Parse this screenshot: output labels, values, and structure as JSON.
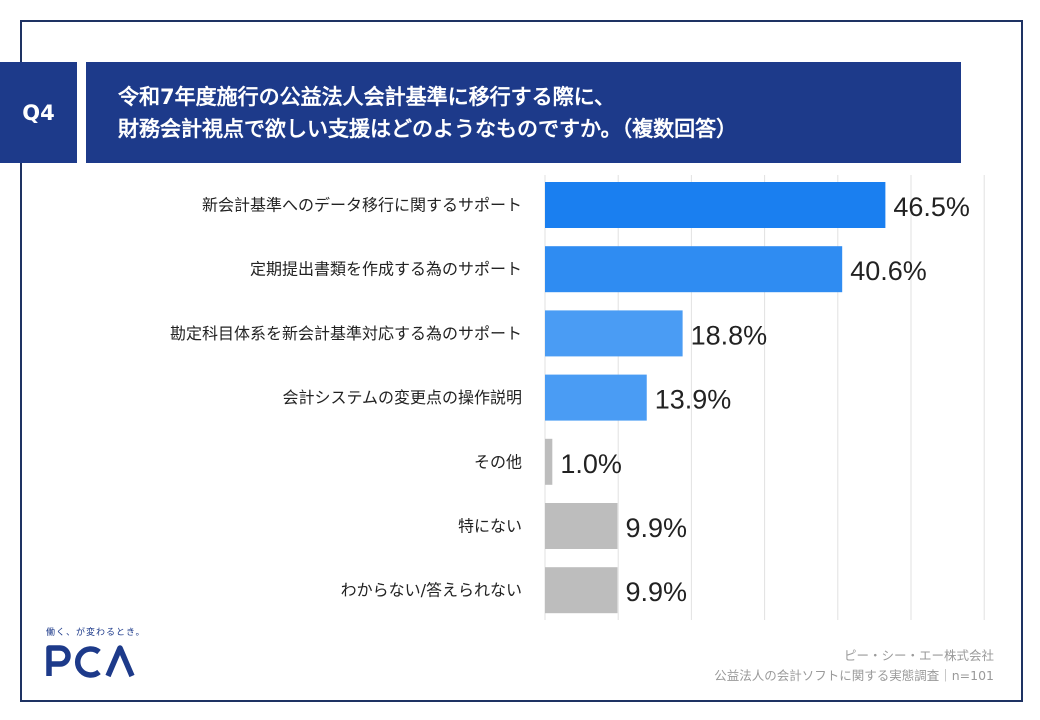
{
  "question": {
    "label": "Q4",
    "title_line1": "令和7年度施行の公益法人会計基準に移行する際に、",
    "title_line2": "財務会計視点で欲しい支援はどのようなものですか。（複数回答）"
  },
  "chart_data": {
    "type": "bar",
    "orientation": "horizontal",
    "categories": [
      "新会計基準へのデータ移行に関するサポート",
      "定期提出書類を作成する為のサポート",
      "勘定科目体系を新会計基準対応する為のサポート",
      "会計システムの変更点の操作説明",
      "その他",
      "特にない",
      "わからない/答えられない"
    ],
    "values": [
      46.5,
      40.6,
      18.8,
      13.9,
      1.0,
      9.9,
      9.9
    ],
    "value_labels": [
      "46.5%",
      "40.6%",
      "18.8%",
      "13.9%",
      "1.0%",
      "9.9%",
      "9.9%"
    ],
    "bar_colors": [
      "#1a7ff0",
      "#2f8cf2",
      "#4a9cf4",
      "#4a9cf4",
      "#bdbdbd",
      "#bdbdbd",
      "#bdbdbd"
    ],
    "xlim": [
      0,
      60
    ],
    "grid": true,
    "unit": "%"
  },
  "brand": {
    "tagline": "働く、が変わるとき。",
    "logo_text": "PCA",
    "logo_color": "#1d3a8a"
  },
  "footer": {
    "company": "ピー・シー・エー株式会社",
    "survey": "公益法人の会計ソフトに関する実態調査｜n=101"
  }
}
